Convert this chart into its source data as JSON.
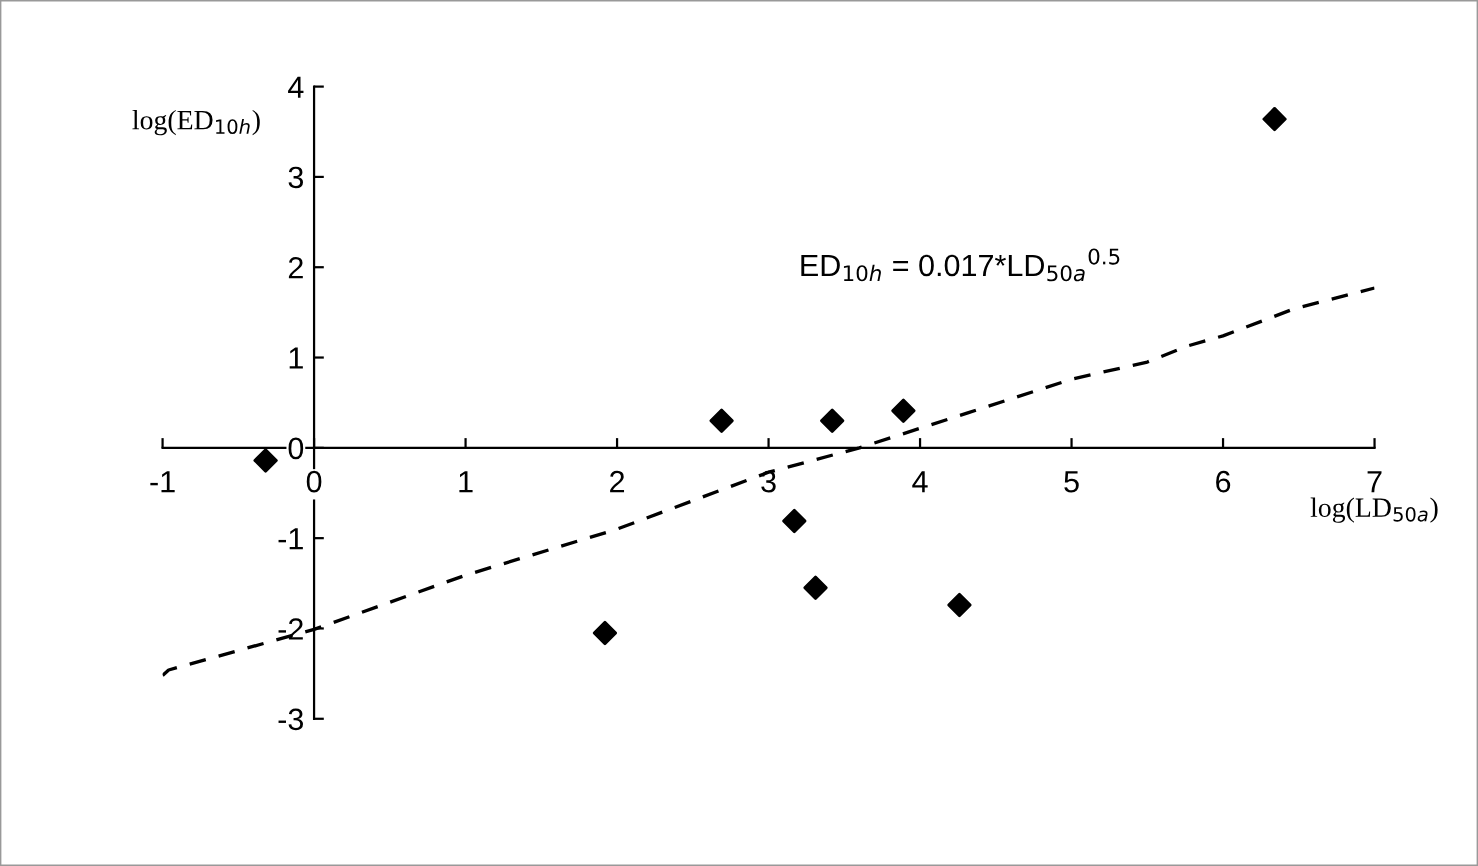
{
  "chart_data": {
    "type": "scatter",
    "xlabel": "log(LD$_{50a}$)",
    "ylabel": "log(ED$_{10h}$)",
    "annotations": [
      "ED$_{10h}$ = 0.017*LD$_{50a}$$^{0.5}$"
    ],
    "xlim": [
      -1,
      7
    ],
    "ylim": [
      -3,
      4
    ],
    "xticks": [
      -1,
      0,
      1,
      2,
      3,
      4,
      5,
      6,
      7
    ],
    "yticks": [
      -3,
      -2,
      -1,
      0,
      1,
      2,
      3,
      4
    ],
    "grid": false,
    "legend": false,
    "series": [
      {
        "color": "#000000",
        "marker": "diamond",
        "x": [
          -0.32,
          1.92,
          2.69,
          3.17,
          3.31,
          3.42,
          3.89,
          4.26,
          6.34
        ],
        "values": [
          -0.14,
          -2.05,
          0.3,
          -0.81,
          -1.55,
          0.3,
          0.41,
          -1.74,
          3.64
        ]
      },
      {
        "type": "line",
        "color": "#000000",
        "line_style": "dashed",
        "marker": "none",
        "x": [
          -1,
          -0.96,
          0,
          1,
          2,
          3,
          3.6,
          4.32,
          5,
          5.5,
          5.77,
          6,
          6.47,
          7
        ],
        "values": [
          -2.52,
          -2.46,
          -2.01,
          -1.41,
          -0.9,
          -0.27,
          0,
          0.39,
          0.76,
          0.95,
          1.13,
          1.24,
          1.54,
          1.77
        ]
      }
    ]
  }
}
